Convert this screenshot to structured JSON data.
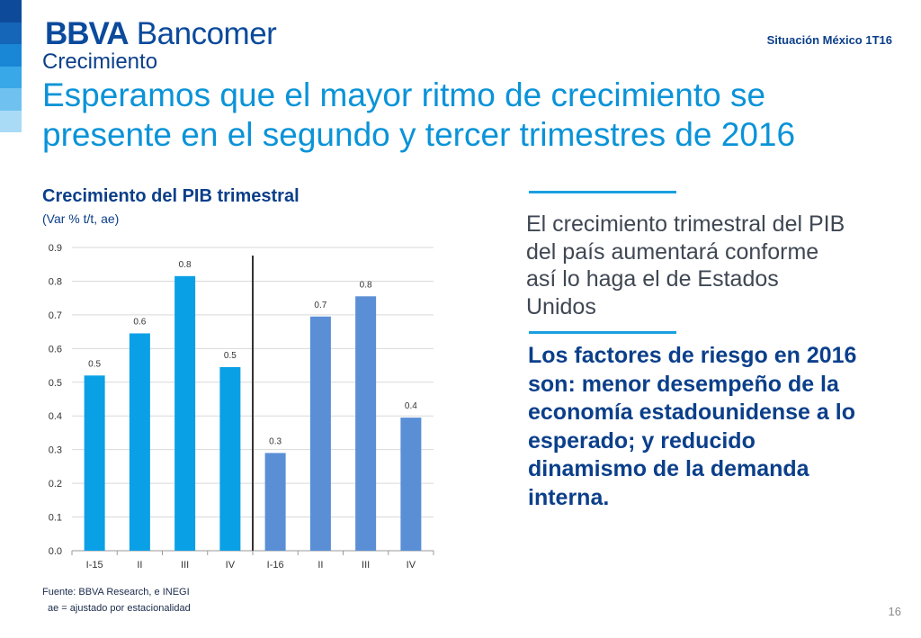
{
  "brand": {
    "bold": "BBVA",
    "light": " Bancomer"
  },
  "report_id": "Situación México 1T16",
  "section": "Crecimiento",
  "headline": "Esperamos que el mayor ritmo de crecimiento se presente en el segundo y tercer trimestres de 2016",
  "chart_data": {
    "type": "bar",
    "title": "Crecimiento del PIB trimestral",
    "subtitle": "(Var % t/t, ae)",
    "categories": [
      "I-15",
      "II",
      "III",
      "IV",
      "I-16",
      "II",
      "III",
      "IV"
    ],
    "values": [
      0.52,
      0.645,
      0.815,
      0.545,
      0.29,
      0.695,
      0.755,
      0.395
    ],
    "data_labels": [
      "0.5",
      "0.6",
      "0.8",
      "0.5",
      "0.3",
      "0.7",
      "0.8",
      "0.4"
    ],
    "ylim": [
      0,
      0.9
    ],
    "yticks": [
      "0.0",
      "0.1",
      "0.2",
      "0.3",
      "0.4",
      "0.5",
      "0.6",
      "0.7",
      "0.8",
      "0.9"
    ],
    "grid": true,
    "divider_after_index": 3,
    "colors": [
      "#0aa0e6",
      "#0aa0e6",
      "#0aa0e6",
      "#0aa0e6",
      "#5a8fd6",
      "#5a8fd6",
      "#5a8fd6",
      "#5a8fd6"
    ]
  },
  "source_note": "Fuente: BBVA Research, e INEGI",
  "abbr_note": "ae = ajustado por estacionalidad",
  "message_1": "El crecimiento trimestral del PIB del país aumentará conforme así lo haga el de Estados Unidos",
  "message_2": "Los factores de riesgo en 2016 son: menor desempeño de la economía estadounidense a lo esperado;  y reducido dinamismo de la demanda interna.",
  "page_number": "16",
  "colors": {
    "dark_blue": "#0b3f8a",
    "light_blue": "#0a93d8",
    "accent": "#1aa0e0"
  }
}
